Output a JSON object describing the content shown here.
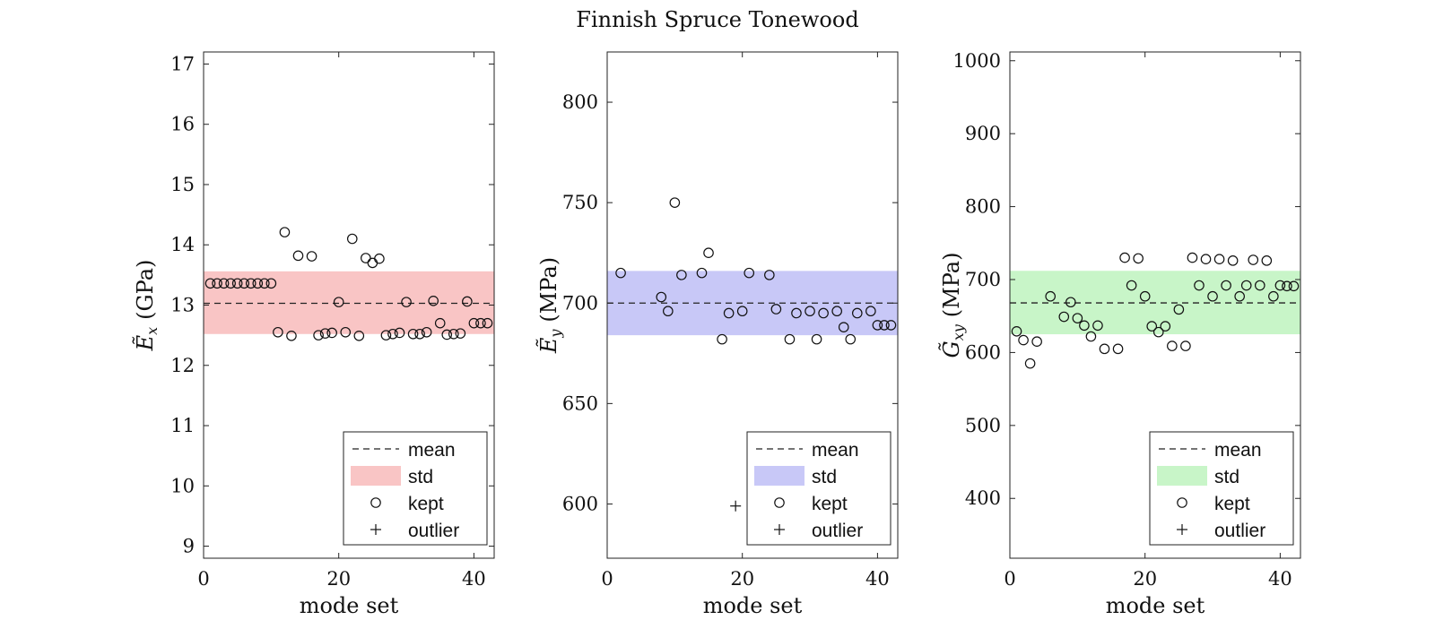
{
  "title": "Finnish Spruce Tonewood",
  "chart_data": [
    {
      "type": "scatter",
      "ylabel_symbol": "Ẽ",
      "ylabel_sub": "x",
      "ylabel_unit": "(GPa)",
      "xlabel": "mode set",
      "xlim": [
        0,
        43
      ],
      "ylim": [
        8.8,
        17.2
      ],
      "xticks": [
        0,
        20,
        40
      ],
      "yticks": [
        9,
        10,
        11,
        12,
        13,
        14,
        15,
        16,
        17
      ],
      "mean": 13.03,
      "std_band": [
        12.52,
        13.56
      ],
      "band_color": "#f9c5c5",
      "kept": [
        [
          1,
          13.36
        ],
        [
          2,
          13.36
        ],
        [
          3,
          13.36
        ],
        [
          4,
          13.36
        ],
        [
          5,
          13.36
        ],
        [
          6,
          13.36
        ],
        [
          7,
          13.36
        ],
        [
          8,
          13.36
        ],
        [
          9,
          13.36
        ],
        [
          10,
          13.36
        ],
        [
          11,
          12.55
        ],
        [
          12,
          14.21
        ],
        [
          13,
          12.49
        ],
        [
          14,
          13.82
        ],
        [
          16,
          13.81
        ],
        [
          17,
          12.5
        ],
        [
          18,
          12.53
        ],
        [
          19,
          12.54
        ],
        [
          20,
          13.05
        ],
        [
          21,
          12.55
        ],
        [
          22,
          14.1
        ],
        [
          23,
          12.49
        ],
        [
          24,
          13.78
        ],
        [
          25,
          13.7
        ],
        [
          26,
          13.77
        ],
        [
          27,
          12.5
        ],
        [
          28,
          12.52
        ],
        [
          29,
          12.54
        ],
        [
          30,
          13.05
        ],
        [
          31,
          12.52
        ],
        [
          32,
          12.52
        ],
        [
          33,
          12.55
        ],
        [
          34,
          13.07
        ],
        [
          35,
          12.7
        ],
        [
          36,
          12.51
        ],
        [
          37,
          12.52
        ],
        [
          38,
          12.53
        ],
        [
          39,
          13.06
        ],
        [
          40,
          12.7
        ],
        [
          41,
          12.7
        ],
        [
          42,
          12.7
        ]
      ],
      "outliers": [],
      "legend": [
        {
          "kind": "line",
          "label": "mean"
        },
        {
          "kind": "band",
          "label": "std"
        },
        {
          "kind": "circle",
          "label": "kept"
        },
        {
          "kind": "plus",
          "label": "outlier"
        }
      ],
      "legend_position": "bottom-right"
    },
    {
      "type": "scatter",
      "ylabel_symbol": "Ẽ",
      "ylabel_sub": "y",
      "ylabel_unit": "(MPa)",
      "xlabel": "mode set",
      "xlim": [
        0,
        43
      ],
      "ylim": [
        573,
        825
      ],
      "xticks": [
        0,
        20,
        40
      ],
      "yticks": [
        600,
        650,
        700,
        750,
        800
      ],
      "mean": 700,
      "std_band": [
        684,
        716
      ],
      "band_color": "#c8c8f7",
      "kept": [
        [
          2,
          715
        ],
        [
          8,
          703
        ],
        [
          9,
          696
        ],
        [
          10,
          750
        ],
        [
          11,
          714
        ],
        [
          14,
          715
        ],
        [
          15,
          725
        ],
        [
          17,
          682
        ],
        [
          18,
          695
        ],
        [
          20,
          696
        ],
        [
          21,
          715
        ],
        [
          24,
          714
        ],
        [
          25,
          697
        ],
        [
          27,
          682
        ],
        [
          28,
          695
        ],
        [
          30,
          696
        ],
        [
          31,
          682
        ],
        [
          32,
          695
        ],
        [
          34,
          696
        ],
        [
          35,
          688
        ],
        [
          36,
          682
        ],
        [
          37,
          695
        ],
        [
          39,
          696
        ],
        [
          40,
          689
        ],
        [
          41,
          689
        ],
        [
          42,
          689
        ]
      ],
      "outliers": [
        [
          19,
          599
        ]
      ],
      "legend": [
        {
          "kind": "line",
          "label": "mean"
        },
        {
          "kind": "band",
          "label": "std"
        },
        {
          "kind": "circle",
          "label": "kept"
        },
        {
          "kind": "plus",
          "label": "outlier"
        }
      ],
      "legend_position": "bottom-right"
    },
    {
      "type": "scatter",
      "ylabel_symbol": "G̃",
      "ylabel_sub": "xy",
      "ylabel_unit": "(MPa)",
      "xlabel": "mode set",
      "xlim": [
        0,
        43
      ],
      "ylim": [
        318,
        1012
      ],
      "xticks": [
        0,
        20,
        40
      ],
      "yticks": [
        400,
        500,
        600,
        700,
        800,
        900,
        1000
      ],
      "mean": 668,
      "std_band": [
        625,
        712
      ],
      "band_color": "#c8f5c8",
      "kept": [
        [
          1,
          629
        ],
        [
          2,
          617
        ],
        [
          3,
          585
        ],
        [
          4,
          615
        ],
        [
          6,
          677
        ],
        [
          8,
          649
        ],
        [
          9,
          669
        ],
        [
          10,
          647
        ],
        [
          11,
          637
        ],
        [
          12,
          622
        ],
        [
          13,
          637
        ],
        [
          14,
          605
        ],
        [
          16,
          605
        ],
        [
          17,
          730
        ],
        [
          18,
          692
        ],
        [
          19,
          729
        ],
        [
          20,
          677
        ],
        [
          21,
          636
        ],
        [
          22,
          628
        ],
        [
          23,
          636
        ],
        [
          24,
          609
        ],
        [
          25,
          659
        ],
        [
          26,
          609
        ],
        [
          27,
          730
        ],
        [
          28,
          692
        ],
        [
          29,
          728
        ],
        [
          30,
          677
        ],
        [
          31,
          728
        ],
        [
          32,
          692
        ],
        [
          33,
          726
        ],
        [
          34,
          677
        ],
        [
          35,
          692
        ],
        [
          36,
          727
        ],
        [
          37,
          692
        ],
        [
          38,
          726
        ],
        [
          39,
          677
        ],
        [
          40,
          692
        ],
        [
          41,
          691
        ],
        [
          42,
          691
        ]
      ],
      "outliers": [],
      "legend": [
        {
          "kind": "line",
          "label": "mean"
        },
        {
          "kind": "band",
          "label": "std"
        },
        {
          "kind": "circle",
          "label": "kept"
        },
        {
          "kind": "plus",
          "label": "outlier"
        }
      ],
      "legend_position": "bottom-right"
    }
  ]
}
